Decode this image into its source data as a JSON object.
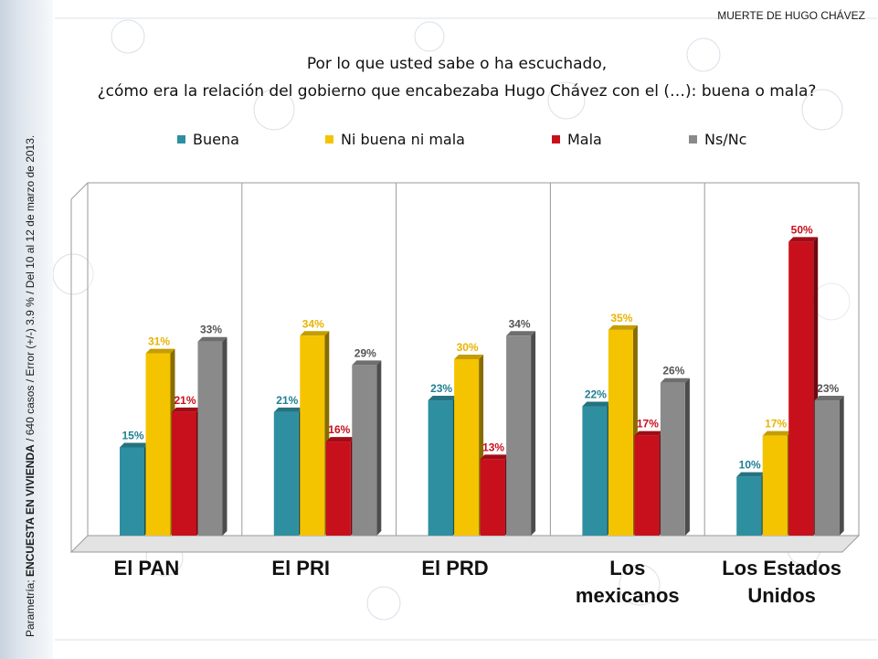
{
  "header": {
    "topic": "MUERTE DE HUGO CHÁVEZ",
    "question_line1": "Por lo que usted sabe o ha escuchado,",
    "question_line2": "¿cómo era la relación del gobierno que encabezaba Hugo Chávez con el (…): buena o mala?"
  },
  "side_note": {
    "prefix": "Parametría; ",
    "bold": "ENCUESTA EN VIVIENDA",
    "suffix": " / 640 casos / Error (+/-) 3.9 % / Del 10 al 12 de marzo de 2013."
  },
  "colors": {
    "buena": "#2e8fa0",
    "ni": "#f5c400",
    "mala": "#c8101c",
    "nsnc": "#8a8a8a",
    "label_buena": "#1f7f93",
    "label_ni": "#e8b400",
    "label_mala": "#c8101c",
    "label_nsnc": "#555555"
  },
  "chart_data": {
    "type": "bar",
    "categories": [
      "El PAN",
      "El PRI",
      "El PRD",
      "Los mexicanos",
      "Los Estados Unidos"
    ],
    "series": [
      {
        "name": "Buena",
        "key": "buena",
        "values": [
          15,
          21,
          23,
          22,
          10
        ]
      },
      {
        "name": "Ni buena ni mala",
        "key": "ni",
        "values": [
          31,
          34,
          30,
          35,
          17
        ]
      },
      {
        "name": "Mala",
        "key": "mala",
        "values": [
          21,
          16,
          13,
          17,
          50
        ]
      },
      {
        "name": "Ns/Nc",
        "key": "nsnc",
        "values": [
          33,
          29,
          34,
          26,
          23
        ]
      }
    ],
    "value_suffix": "%",
    "ylim": [
      0,
      60
    ],
    "grid": false,
    "legend_position": "top",
    "category_labels_lines": [
      [
        "El PAN"
      ],
      [
        "El PRI"
      ],
      [
        "El PRD"
      ],
      [
        "Los",
        "mexicanos"
      ],
      [
        "Los Estados",
        "Unidos"
      ]
    ]
  }
}
